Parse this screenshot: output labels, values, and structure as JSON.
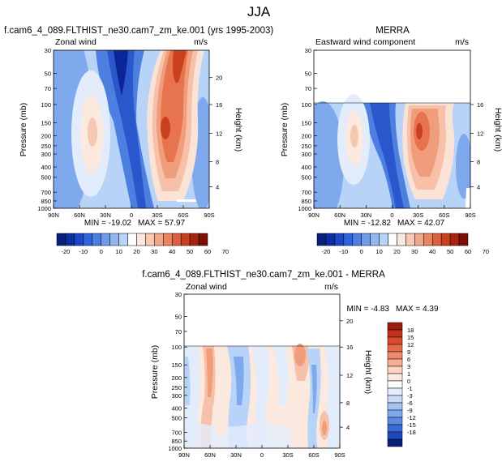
{
  "figure": {
    "title": "JJA"
  },
  "chart_data": [
    {
      "type": "heatmap",
      "panel": "model",
      "title": "f.cam6_4_089.FLTHIST_ne30.cam7_zm_ke.001 (yrs 1995-2003)",
      "left_label": "Zonal wind",
      "units": "m/s",
      "ylabel": "Pressure (mb)",
      "right_ylabel": "Height (km)",
      "x_ticks": [
        "90N",
        "60N",
        "30N",
        "0",
        "30S",
        "60S",
        "90S"
      ],
      "y_ticks": [
        "30",
        "50",
        "70",
        "100",
        "150",
        "200",
        "250",
        "300",
        "400",
        "500",
        "700",
        "850",
        "1000"
      ],
      "height_ticks": [
        "20",
        "16",
        "12",
        "8",
        "4"
      ],
      "min_text": "MIN = -19.02",
      "max_text": "MAX = 57.97",
      "colorbar_labels": [
        "-20",
        "-10",
        "0",
        "10",
        "20",
        "30",
        "40",
        "50",
        "60",
        "70"
      ],
      "pressure_top": 30
    },
    {
      "type": "heatmap",
      "panel": "obs",
      "title": "MERRA",
      "left_label": "Eastward wind component",
      "units": "m/s",
      "ylabel": "Pressure (mb)",
      "right_ylabel": "Height (km)",
      "x_ticks": [
        "90N",
        "60N",
        "30N",
        "0",
        "30S",
        "60S",
        "90S"
      ],
      "y_ticks": [
        "30",
        "50",
        "70",
        "100",
        "150",
        "200",
        "250",
        "300",
        "400",
        "500",
        "700",
        "850",
        "1000"
      ],
      "height_ticks": [
        "16",
        "12",
        "8",
        "4"
      ],
      "min_text": "MIN = -12.82",
      "max_text": "MAX = 42.07",
      "colorbar_labels": [
        "-20",
        "-10",
        "0",
        "10",
        "20",
        "30",
        "40",
        "50",
        "60",
        "70"
      ],
      "pressure_top": 100
    },
    {
      "type": "heatmap",
      "panel": "diff",
      "title": "f.cam6_4_089.FLTHIST_ne30.cam7_zm_ke.001 - MERRA",
      "left_label": "Zonal wind",
      "units": "m/s",
      "ylabel": "Pressure (mb)",
      "right_ylabel": "Height (km)",
      "x_ticks": [
        "90N",
        "60N",
        "30N",
        "0",
        "30S",
        "60S",
        "90S"
      ],
      "y_ticks": [
        "30",
        "50",
        "70",
        "100",
        "150",
        "200",
        "250",
        "300",
        "400",
        "500",
        "700",
        "850",
        "1000"
      ],
      "height_ticks": [
        "20",
        "16",
        "12",
        "8",
        "4"
      ],
      "min_text": "MIN = -4.83",
      "max_text": "MAX = 4.39",
      "colorbar_labels": [
        "18",
        "15",
        "12",
        "9",
        "6",
        "3",
        "1",
        "0",
        "-1",
        "-3",
        "-6",
        "-9",
        "-12",
        "-15",
        "-18"
      ],
      "pressure_top": 100
    }
  ]
}
